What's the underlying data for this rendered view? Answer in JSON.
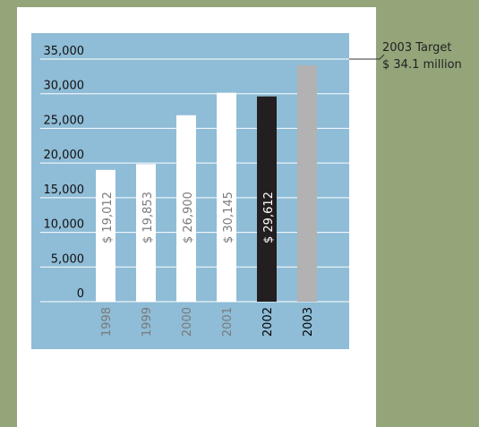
{
  "chart_data": {
    "type": "bar",
    "categories": [
      "1998",
      "1999",
      "2000",
      "2001",
      "2002",
      "2003"
    ],
    "values": [
      19012,
      19853,
      26900,
      30145,
      29612,
      34100
    ],
    "value_labels": [
      "$ 19,012",
      "$ 19,853",
      "$ 26,900",
      "$ 30,145",
      "$ 29,612",
      null
    ],
    "colors": [
      "#ffffff",
      "#ffffff",
      "#ffffff",
      "#ffffff",
      "#231f20",
      "#b2b2b2"
    ],
    "value_label_colors": [
      "#7a7a7a",
      "#7a7a7a",
      "#7a7a7a",
      "#7a7a7a",
      "#ffffff",
      "#ffffff"
    ],
    "category_label_colors": [
      "#7a7a7a",
      "#7a7a7a",
      "#7a7a7a",
      "#7a7a7a",
      "#000000",
      "#000000"
    ],
    "ylim": [
      0,
      35000
    ],
    "yticks": [
      {
        "value": 0,
        "label": "0"
      },
      {
        "value": 5000,
        "label": "5,000"
      },
      {
        "value": 10000,
        "label": "10,000"
      },
      {
        "value": 15000,
        "label": "15,000"
      },
      {
        "value": 20000,
        "label": "20,000"
      },
      {
        "value": 25000,
        "label": "25,000"
      },
      {
        "value": 30000,
        "label": "30,000"
      },
      {
        "value": 35000,
        "label": "35,000"
      }
    ],
    "grid": true,
    "annotations": [
      "2003 Target",
      "$ 34.1 million"
    ]
  }
}
